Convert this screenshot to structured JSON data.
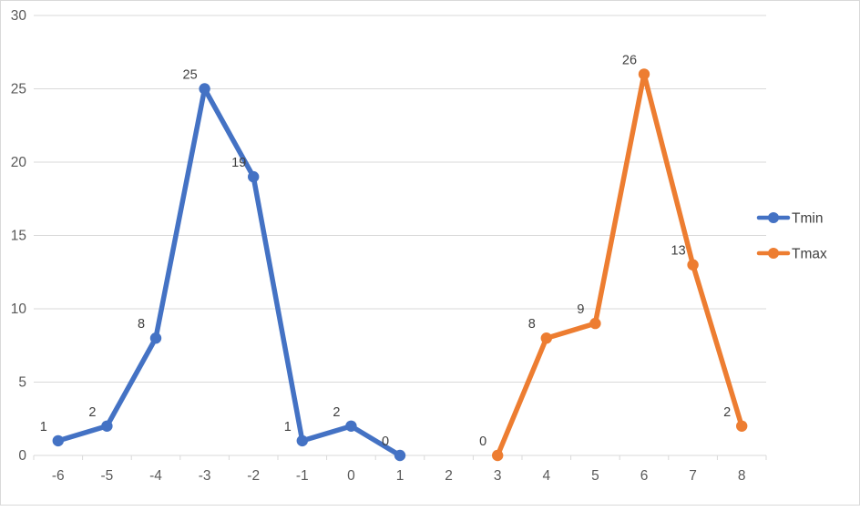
{
  "chart_data": {
    "type": "line",
    "title": "",
    "xlabel": "",
    "ylabel": "",
    "x_ticks": [
      "-6",
      "-5",
      "-4",
      "-3",
      "-2",
      "-1",
      "0",
      "1",
      "2",
      "3",
      "4",
      "5",
      "6",
      "7",
      "8"
    ],
    "x_range": [
      -6,
      8
    ],
    "y_ticks": [
      0,
      5,
      10,
      15,
      20,
      25,
      30
    ],
    "ylim": [
      0,
      30
    ],
    "grid": true,
    "data_labels": true,
    "legend_position": "right",
    "series": [
      {
        "name": "Tmin",
        "color": "#4472C4",
        "points": [
          [
            -6,
            1
          ],
          [
            -5,
            2
          ],
          [
            -4,
            8
          ],
          [
            -3,
            25
          ],
          [
            -2,
            19
          ],
          [
            -1,
            1
          ],
          [
            0,
            2
          ],
          [
            1,
            0
          ]
        ],
        "labels": [
          "1",
          "2",
          "8",
          "25",
          "19",
          "1",
          "2",
          "0"
        ]
      },
      {
        "name": "Tmax",
        "color": "#ED7D31",
        "points": [
          [
            3,
            0
          ],
          [
            4,
            8
          ],
          [
            5,
            9
          ],
          [
            6,
            26
          ],
          [
            7,
            13
          ],
          [
            8,
            2
          ]
        ],
        "labels": [
          "0",
          "8",
          "9",
          "26",
          "13",
          "2"
        ]
      }
    ]
  },
  "legend": {
    "items": [
      {
        "label": "Tmin",
        "color": "#4472C4"
      },
      {
        "label": "Tmax",
        "color": "#ED7D31"
      }
    ]
  },
  "style": {
    "grid_color": "#D9D9D9",
    "tick_color": "#D9D9D9",
    "axis_text_color": "#595959",
    "data_label_color": "#404040",
    "background": "#FFFFFF"
  }
}
